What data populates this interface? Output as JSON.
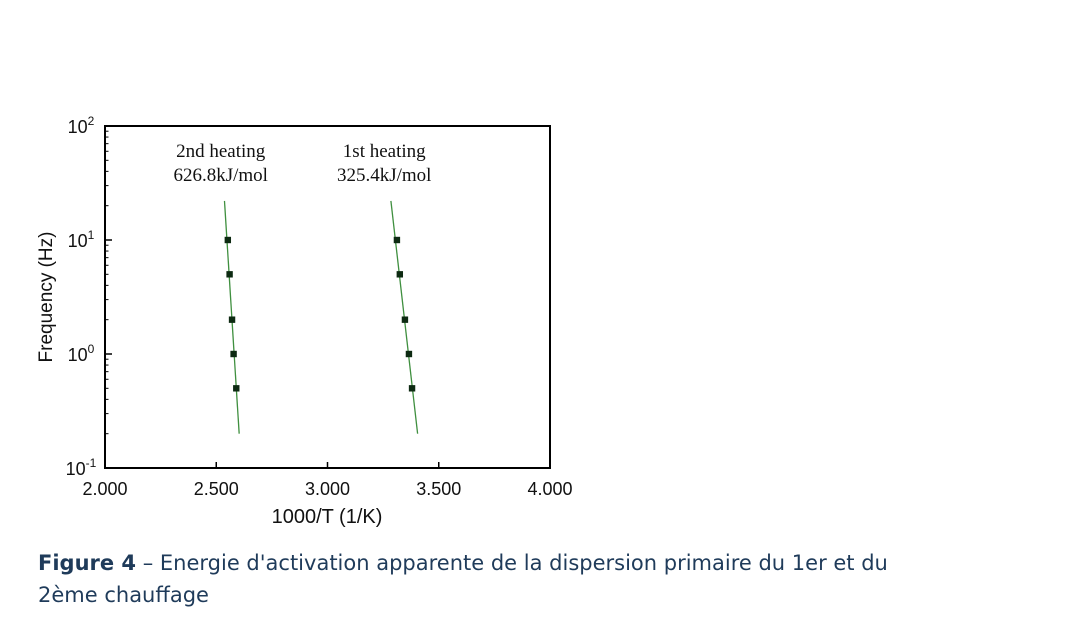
{
  "chart_data": {
    "type": "scatter",
    "xlabel": "1000/T (1/K)",
    "ylabel": "Frequency (Hz)",
    "xlim": [
      2.0,
      4.0
    ],
    "ylim": [
      0.1,
      100
    ],
    "y_scale": "log",
    "x_ticks": [
      "2.000",
      "2.500",
      "3.000",
      "3.500",
      "4.000"
    ],
    "y_ticks": [
      {
        "base": "10",
        "exp": "-1",
        "value": 0.1
      },
      {
        "base": "10",
        "exp": "0",
        "value": 1
      },
      {
        "base": "10",
        "exp": "1",
        "value": 10
      },
      {
        "base": "10",
        "exp": "2",
        "value": 100
      }
    ],
    "grid": false,
    "marker_color": "#0d2a12",
    "line_color": "#3f8f3f",
    "series": [
      {
        "name": "2nd heating",
        "annotation": "626.8kJ/mol",
        "points": [
          {
            "x": 2.552,
            "y": 10
          },
          {
            "x": 2.56,
            "y": 5
          },
          {
            "x": 2.571,
            "y": 2
          },
          {
            "x": 2.578,
            "y": 1
          },
          {
            "x": 2.59,
            "y": 0.5
          }
        ],
        "fit": [
          {
            "x": 2.537,
            "y": 22
          },
          {
            "x": 2.603,
            "y": 0.2
          }
        ]
      },
      {
        "name": "1st heating",
        "annotation": "325.4kJ/mol",
        "points": [
          {
            "x": 3.312,
            "y": 10
          },
          {
            "x": 3.325,
            "y": 5
          },
          {
            "x": 3.348,
            "y": 2
          },
          {
            "x": 3.366,
            "y": 1
          },
          {
            "x": 3.38,
            "y": 0.5
          }
        ],
        "fit": [
          {
            "x": 3.285,
            "y": 22
          },
          {
            "x": 3.405,
            "y": 0.2
          }
        ]
      }
    ]
  },
  "caption": {
    "label": "Figure 4",
    "text": " – Energie d'activation apparente de la dispersion primaire du 1er et du 2ème chauffage"
  }
}
